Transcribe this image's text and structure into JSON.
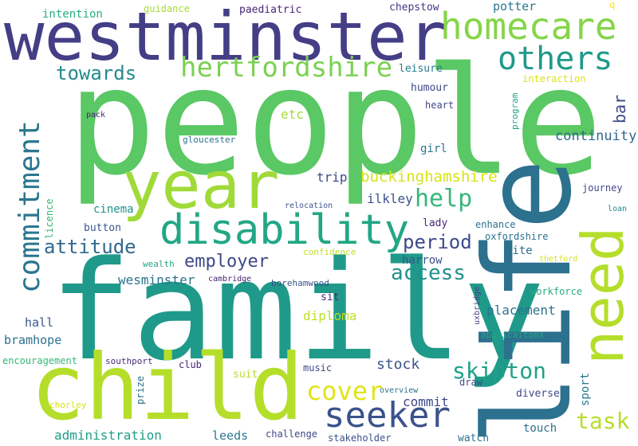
{
  "words": [
    {
      "text": "people",
      "color": "#5ac864"
    },
    {
      "text": "family",
      "color": "#1f9a8a"
    },
    {
      "text": "westminster",
      "color": "#433e85"
    },
    {
      "text": "child",
      "color": "#b5de2b"
    },
    {
      "text": "life",
      "color": "#2c718e"
    },
    {
      "text": "year",
      "color": "#a0da39"
    },
    {
      "text": "need",
      "color": "#b5de2b"
    },
    {
      "text": "disability",
      "color": "#22a785"
    },
    {
      "text": "homecare",
      "color": "#86d549"
    },
    {
      "text": "seeker",
      "color": "#3b528b"
    },
    {
      "text": "others",
      "color": "#1f9a8a"
    },
    {
      "text": "commitment",
      "color": "#2a768e"
    },
    {
      "text": "hertfordshire",
      "color": "#7ad151"
    },
    {
      "text": "cover",
      "color": "#e2e418"
    },
    {
      "text": "help",
      "color": "#35b779"
    },
    {
      "text": "skipton",
      "color": "#1fa188"
    },
    {
      "text": "task",
      "color": "#b5de2b"
    },
    {
      "text": "attitude",
      "color": "#31688e"
    },
    {
      "text": "towards",
      "color": "#238a8d"
    },
    {
      "text": "period",
      "color": "#3e4a89"
    },
    {
      "text": "access",
      "color": "#21918c"
    },
    {
      "text": "employer",
      "color": "#3e4989"
    },
    {
      "text": "bar",
      "color": "#3e4989"
    },
    {
      "text": "buckinghamshire",
      "color": "#d8e219"
    },
    {
      "text": "continuity",
      "color": "#31688e"
    },
    {
      "text": "stock",
      "color": "#3b528b"
    },
    {
      "text": "wesminster",
      "color": "#2c728e"
    },
    {
      "text": "commit",
      "color": "#3e4989"
    },
    {
      "text": "placement",
      "color": "#2c728e"
    },
    {
      "text": "diploma",
      "color": "#bddf26"
    },
    {
      "text": "administration",
      "color": "#1f9e89"
    },
    {
      "text": "bramhope",
      "color": "#2d708e"
    },
    {
      "text": "potter",
      "color": "#2a788e"
    },
    {
      "text": "intention",
      "color": "#27ad81"
    },
    {
      "text": "chepstow",
      "color": "#453781"
    },
    {
      "text": "paediatric",
      "color": "#482576"
    },
    {
      "text": "etc",
      "color": "#a5db36"
    },
    {
      "text": "trip",
      "color": "#3e4a89"
    },
    {
      "text": "ilkley",
      "color": "#3b528b"
    },
    {
      "text": "leeds",
      "color": "#2a788e"
    },
    {
      "text": "hall",
      "color": "#38598c"
    },
    {
      "text": "cinema",
      "color": "#21918c"
    },
    {
      "text": "button",
      "color": "#3a548c"
    },
    {
      "text": "harrow",
      "color": "#3b528b"
    },
    {
      "text": "kite",
      "color": "#2c728e"
    },
    {
      "text": "leisure",
      "color": "#297b8e"
    },
    {
      "text": "humour",
      "color": "#3e4a89"
    },
    {
      "text": "heart",
      "color": "#3f4889"
    },
    {
      "text": "girl",
      "color": "#2a788e"
    },
    {
      "text": "lady",
      "color": "#482878"
    },
    {
      "text": "enhance",
      "color": "#2c728e"
    },
    {
      "text": "oxfordshire",
      "color": "#2c728e"
    },
    {
      "text": "journey",
      "color": "#3f4788"
    },
    {
      "text": "sit",
      "color": "#482878"
    },
    {
      "text": "suit",
      "color": "#b5de2b"
    },
    {
      "text": "music",
      "color": "#3e4989"
    },
    {
      "text": "club",
      "color": "#482878"
    },
    {
      "text": "workforce",
      "color": "#27ad81"
    },
    {
      "text": "sport",
      "color": "#2a788e"
    },
    {
      "text": "diverse",
      "color": "#3e4989"
    },
    {
      "text": "touch",
      "color": "#2c728e"
    },
    {
      "text": "watch",
      "color": "#2c728e"
    },
    {
      "text": "challenge",
      "color": "#3e4989"
    },
    {
      "text": "stakeholder",
      "color": "#3b528b"
    },
    {
      "text": "draw",
      "color": "#3e4989"
    },
    {
      "text": "prize",
      "color": "#2c728e"
    },
    {
      "text": "encouragement",
      "color": "#35b779"
    },
    {
      "text": "southport",
      "color": "#472d7b"
    },
    {
      "text": "chorley",
      "color": "#d8e219"
    },
    {
      "text": "overview",
      "color": "#2c728e"
    },
    {
      "text": "guidance",
      "color": "#a5db36"
    },
    {
      "text": "q",
      "color": "#fde725"
    },
    {
      "text": "interaction",
      "color": "#dde318"
    },
    {
      "text": "program",
      "color": "#1fa188"
    },
    {
      "text": "pack",
      "color": "#482576"
    },
    {
      "text": "gloucester",
      "color": "#2c728e"
    },
    {
      "text": "licence",
      "color": "#35b779"
    },
    {
      "text": "relocation",
      "color": "#3b528b"
    },
    {
      "text": "loan",
      "color": "#238a8d"
    },
    {
      "text": "confidence",
      "color": "#bddf26"
    },
    {
      "text": "wealth",
      "color": "#22a785"
    },
    {
      "text": "cambridge",
      "color": "#482576"
    },
    {
      "text": "borehamwood",
      "color": "#3b528b"
    },
    {
      "text": "thetford",
      "color": "#d8e219"
    },
    {
      "text": "uxbridge",
      "color": "#433e85"
    },
    {
      "text": "applicaitons",
      "color": "#22a785"
    }
  ]
}
